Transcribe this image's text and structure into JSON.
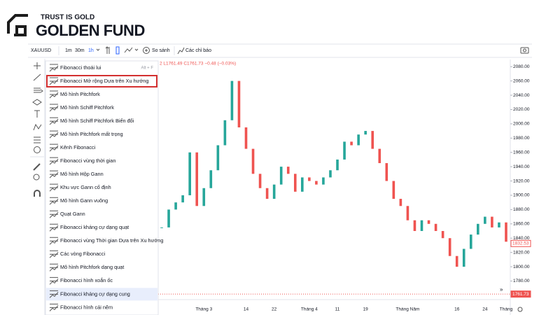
{
  "logo": {
    "tagline": "TRUST IS GOLD",
    "name": "GOLDEN FUND"
  },
  "toolbar": {
    "symbol": "XAUUSD",
    "intervals": [
      "1m",
      "30m",
      "1h"
    ],
    "compare": "So sánh",
    "indicators": "Các chỉ báo"
  },
  "menu": {
    "items": [
      {
        "label": "Fibonacci thoái lui",
        "shortcut": "Alt + F"
      },
      {
        "label": "Fibonacci Mở rộng Dựa trên Xu hướng"
      },
      {
        "label": "Mô hình Pitchfork"
      },
      {
        "label": "Mô hình Schiff Pitchfork"
      },
      {
        "label": "Mô hình Schiff Pitchfork Biến đổi"
      },
      {
        "label": "Mô hình Pitchfork mất trọng"
      },
      {
        "label": "Kênh Fibonacci"
      },
      {
        "label": "Fibonacci vùng thời gian"
      },
      {
        "label": "Mô hình Hộp Gann"
      },
      {
        "label": "Khu vực Gann cố định"
      },
      {
        "label": "Mô hình Gann vuông"
      },
      {
        "label": "Quạt Gann"
      },
      {
        "label": "Fibonacci kháng cự dạng quạt"
      },
      {
        "label": "Fibonacci vùng Thời gian Dựa trên Xu hướng"
      },
      {
        "label": "Các vòng Fibonacci"
      },
      {
        "label": "Mô hình Pitchfork dạng quạt"
      },
      {
        "label": "Fibonacci hình xoắn ốc"
      },
      {
        "label": "Fibonacci kháng cự dạng cung"
      },
      {
        "label": "Fibonacci hình cái nêm"
      }
    ]
  },
  "chart_data": {
    "type": "candlestick",
    "legend_text": "2 L1761.49 C1761.73 −0.48 (−0.03%)",
    "categories": [
      null,
      null,
      null,
      null,
      null,
      null,
      "Tháng 3",
      null,
      null,
      null,
      null,
      null,
      "14",
      null,
      null,
      null,
      "22",
      null,
      null,
      null,
      null,
      "Tháng 4",
      null,
      null,
      null,
      "11",
      null,
      null,
      null,
      "19",
      null,
      null,
      null,
      null,
      null,
      "Tháng Năm",
      null,
      null,
      null,
      null,
      null,
      null,
      "16",
      null,
      null,
      null,
      "24",
      null,
      null,
      "Tháng"
    ],
    "close": [
      1855,
      1880,
      1890,
      1900,
      1960,
      1885,
      1910,
      1935,
      1970,
      2005,
      2060,
      1995,
      1965,
      1930,
      1910,
      1895,
      1915,
      1940,
      1930,
      1905,
      1925,
      1920,
      1915,
      1925,
      1935,
      1950,
      1975,
      1970,
      1985,
      1990,
      1965,
      1945,
      1920,
      1895,
      1885,
      1865,
      1850,
      1865,
      1860,
      1850,
      1840,
      1815,
      1800,
      1825,
      1845,
      1860,
      1870,
      1855,
      1862,
      1835
    ],
    "up_color": "#26a69a",
    "down_color": "#ef5350",
    "ylim": [
      1754,
      2090
    ],
    "yticks": [
      {
        "value": 2080,
        "label": "2080.00"
      },
      {
        "value": 2060,
        "label": "2060.00"
      },
      {
        "value": 2040,
        "label": "2040.00"
      },
      {
        "value": 2020,
        "label": "2020.00"
      },
      {
        "value": 2000,
        "label": "2000.00"
      },
      {
        "value": 1980,
        "label": "1980.00"
      },
      {
        "value": 1960,
        "label": "1960.00"
      },
      {
        "value": 1940,
        "label": "1940.00"
      },
      {
        "value": 1920,
        "label": "1920.00"
      },
      {
        "value": 1900,
        "label": "1900.00"
      },
      {
        "value": 1880,
        "label": "1880.00"
      },
      {
        "value": 1860,
        "label": "1860.00"
      },
      {
        "value": 1840,
        "label": "1840.00"
      },
      {
        "value": 1820,
        "label": "1820.00"
      },
      {
        "value": 1800,
        "label": "1800.00"
      },
      {
        "value": 1780,
        "label": "1780.00"
      }
    ],
    "price_tags": [
      1832.53,
      1761.73
    ]
  }
}
